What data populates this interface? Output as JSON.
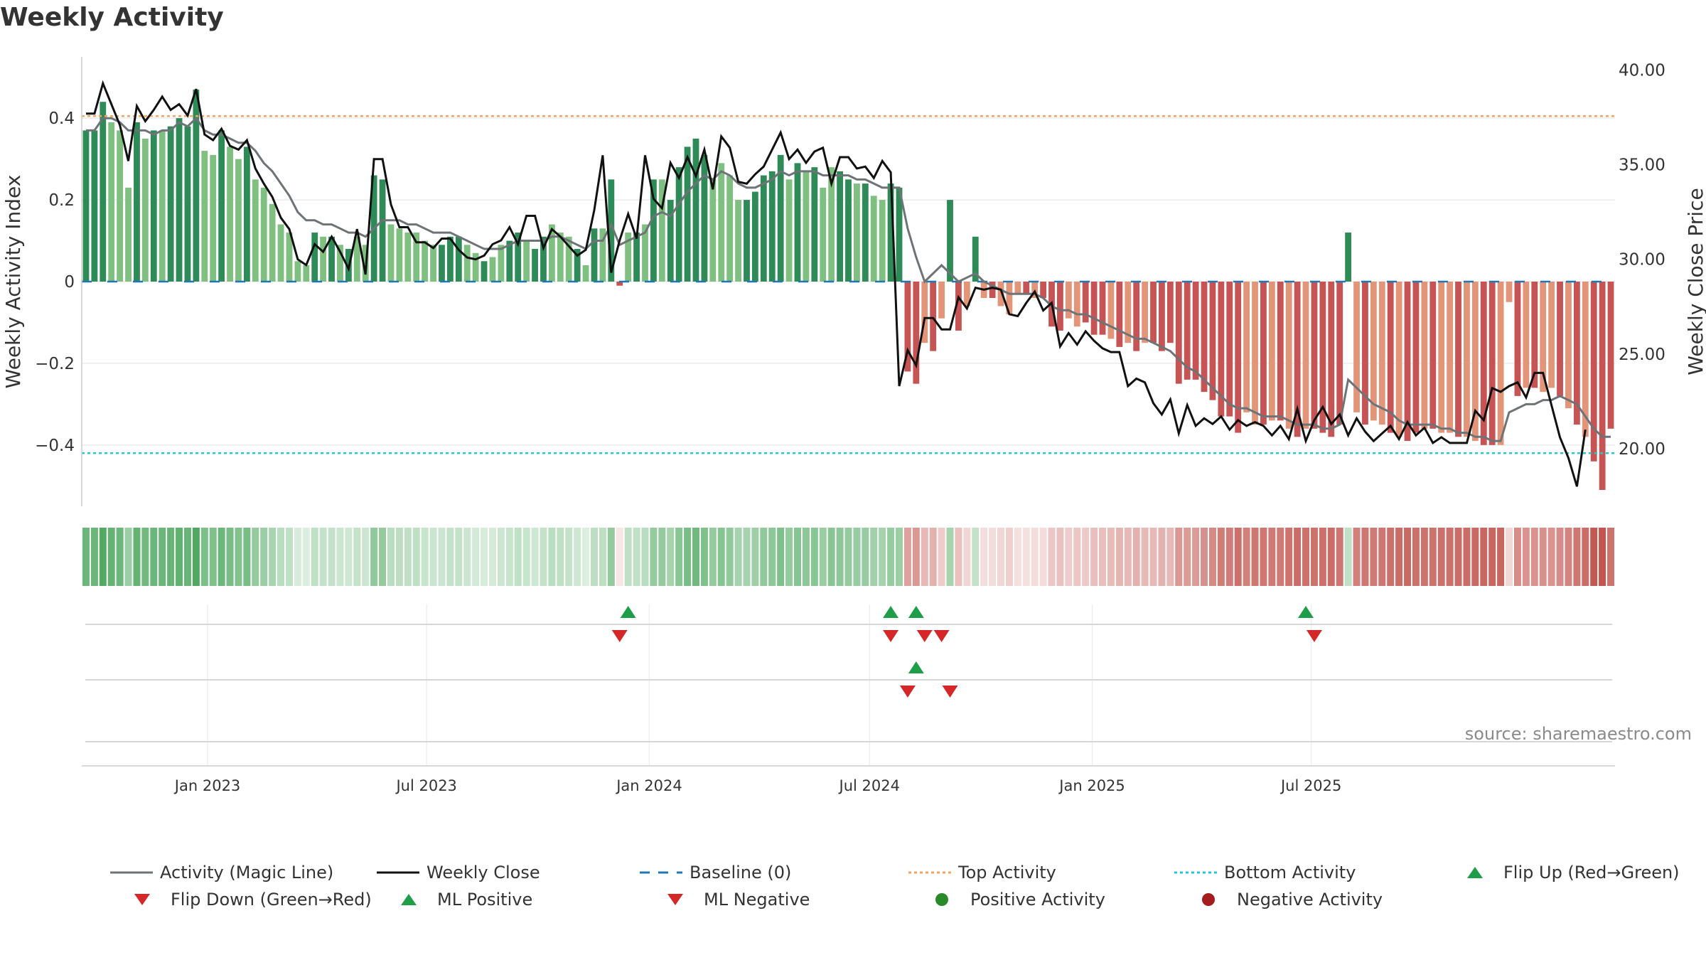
{
  "title": "Weekly Activity",
  "source": "source: sharemaestro.com",
  "colors": {
    "pos_dark": "#2e8b57",
    "pos_light": "#7fbf7f",
    "neg_dark": "#c65454",
    "neg_light": "#e3957a",
    "top_line": "#f4a460",
    "bottom_line": "#22c7d6",
    "baseline": "#1f77b4",
    "magic": "#6e7378",
    "close": "#111111",
    "up": "#1f9e49",
    "down": "#d62728"
  },
  "chart_data": {
    "type": "bar",
    "title": "Weekly Activity",
    "ylabel": "Weekly Activity Index",
    "y2label": "Weekly Close Price",
    "ylim": [
      -0.55,
      0.55
    ],
    "yticks": [
      -0.4,
      -0.2,
      0,
      0.2,
      0.4
    ],
    "ytick_labels": [
      "-0.4",
      "-0.2",
      "0",
      "0.2",
      "0.4"
    ],
    "y2lim": [
      16.95,
      40.7
    ],
    "y2ticks": [
      20,
      25,
      30,
      35,
      40
    ],
    "y2tick_labels": [
      "20.00",
      "25.00",
      "30.00",
      "35.00",
      "40.00"
    ],
    "start_date": "2022-09-19",
    "x_date_ticks": [
      "2023-01-01",
      "2023-07-01",
      "2024-01-01",
      "2024-07-01",
      "2025-01-01",
      "2025-07-01"
    ],
    "x_tick_labels": [
      "Jan 2023",
      "Jul 2023",
      "Jan 2024",
      "Jul 2024",
      "Jan 2025",
      "Jul 2025"
    ],
    "top_activity": 0.405,
    "bottom_activity": -0.42,
    "activity": [
      0.37,
      0.37,
      0.44,
      0.39,
      0.37,
      0.23,
      0.39,
      0.35,
      0.37,
      0.37,
      0.38,
      0.4,
      0.38,
      0.47,
      0.32,
      0.31,
      0.37,
      0.33,
      0.3,
      0.33,
      0.25,
      0.23,
      0.19,
      0.14,
      0.12,
      0.05,
      0.04,
      0.12,
      0.11,
      0.11,
      0.09,
      0.08,
      0.11,
      0.09,
      0.26,
      0.25,
      0.14,
      0.13,
      0.12,
      0.12,
      0.1,
      0.09,
      0.09,
      0.11,
      0.11,
      0.09,
      0.07,
      0.05,
      0.06,
      0.09,
      0.1,
      0.12,
      0.1,
      0.08,
      0.11,
      0.14,
      0.12,
      0.11,
      0.08,
      0.04,
      0.13,
      0.13,
      0.25,
      -0.01,
      0.12,
      0.12,
      0.14,
      0.25,
      0.25,
      0.2,
      0.28,
      0.33,
      0.35,
      0.31,
      0.25,
      0.29,
      0.26,
      0.2,
      0.2,
      0.22,
      0.26,
      0.27,
      0.31,
      0.25,
      0.29,
      0.27,
      0.28,
      0.23,
      0.28,
      0.27,
      0.25,
      0.24,
      0.24,
      0.21,
      0.2,
      0.24,
      0.23,
      -0.22,
      -0.25,
      -0.15,
      -0.17,
      -0.09,
      0.2,
      -0.12,
      -0.06,
      0.11,
      -0.04,
      -0.04,
      -0.06,
      -0.08,
      -0.03,
      -0.03,
      -0.04,
      -0.04,
      -0.11,
      -0.12,
      -0.09,
      -0.11,
      -0.1,
      -0.13,
      -0.13,
      -0.14,
      -0.16,
      -0.15,
      -0.17,
      -0.15,
      -0.15,
      -0.17,
      -0.15,
      -0.25,
      -0.24,
      -0.24,
      -0.27,
      -0.29,
      -0.33,
      -0.33,
      -0.37,
      -0.32,
      -0.35,
      -0.35,
      -0.34,
      -0.34,
      -0.36,
      -0.38,
      -0.36,
      -0.36,
      -0.37,
      -0.38,
      -0.35,
      0.12,
      -0.32,
      -0.35,
      -0.34,
      -0.35,
      -0.37,
      -0.38,
      -0.39,
      -0.37,
      -0.36,
      -0.36,
      -0.37,
      -0.37,
      -0.38,
      -0.38,
      -0.39,
      -0.4,
      -0.4,
      -0.4,
      -0.05,
      -0.28,
      -0.26,
      -0.26,
      -0.27,
      -0.26,
      -0.28,
      -0.31,
      -0.35,
      -0.38,
      -0.44,
      -0.51,
      -0.36
    ],
    "activity_shade": [
      1,
      1,
      1,
      0,
      0,
      0,
      1,
      0,
      1,
      0,
      1,
      1,
      1,
      1,
      0,
      0,
      1,
      0,
      0,
      1,
      0,
      0,
      0,
      0,
      0,
      0,
      0,
      1,
      0,
      1,
      0,
      1,
      0,
      0,
      1,
      1,
      0,
      0,
      0,
      0,
      0,
      0,
      1,
      1,
      1,
      0,
      0,
      1,
      0,
      0,
      1,
      1,
      0,
      1,
      1,
      0,
      0,
      0,
      1,
      0,
      1,
      0,
      1,
      1,
      0,
      1,
      0,
      1,
      0,
      1,
      1,
      1,
      1,
      1,
      0,
      0,
      0,
      0,
      1,
      1,
      1,
      1,
      1,
      0,
      1,
      0,
      1,
      0,
      0,
      1,
      1,
      0,
      1,
      0,
      0,
      1,
      1,
      1,
      1,
      0,
      1,
      0,
      1,
      1,
      0,
      1,
      0,
      1,
      0,
      0,
      0,
      1,
      0,
      1,
      1,
      1,
      0,
      0,
      1,
      1,
      1,
      0,
      1,
      0,
      1,
      0,
      1,
      1,
      1,
      1,
      1,
      1,
      1,
      1,
      1,
      1,
      1,
      0,
      0,
      1,
      0,
      1,
      0,
      1,
      0,
      1,
      1,
      1,
      1,
      1,
      0,
      1,
      0,
      0,
      1,
      0,
      1,
      1,
      0,
      1,
      0,
      0,
      1,
      0,
      0,
      1,
      1,
      0,
      0,
      1,
      0,
      1,
      0,
      0,
      1,
      0,
      1,
      0,
      1,
      1,
      1,
      0,
      1,
      1,
      1
    ],
    "magic_line": [
      0.37,
      0.37,
      0.4,
      0.4,
      0.39,
      0.37,
      0.37,
      0.37,
      0.36,
      0.37,
      0.37,
      0.39,
      0.38,
      0.4,
      0.37,
      0.36,
      0.36,
      0.35,
      0.34,
      0.34,
      0.32,
      0.29,
      0.27,
      0.24,
      0.21,
      0.17,
      0.15,
      0.15,
      0.14,
      0.14,
      0.13,
      0.12,
      0.12,
      0.11,
      0.13,
      0.15,
      0.15,
      0.15,
      0.14,
      0.14,
      0.13,
      0.12,
      0.12,
      0.12,
      0.11,
      0.1,
      0.09,
      0.08,
      0.08,
      0.08,
      0.09,
      0.1,
      0.1,
      0.1,
      0.1,
      0.11,
      0.11,
      0.1,
      0.09,
      0.08,
      0.1,
      0.1,
      0.14,
      0.09,
      0.1,
      0.11,
      0.12,
      0.16,
      0.17,
      0.16,
      0.19,
      0.22,
      0.24,
      0.26,
      0.25,
      0.27,
      0.26,
      0.24,
      0.23,
      0.23,
      0.24,
      0.25,
      0.27,
      0.26,
      0.27,
      0.27,
      0.27,
      0.26,
      0.26,
      0.26,
      0.26,
      0.25,
      0.25,
      0.24,
      0.23,
      0.23,
      0.23,
      0.13,
      0.06,
      0.0,
      0.02,
      0.04,
      0.02,
      0.0,
      0.01,
      0.02,
      0.0,
      -0.01,
      -0.02,
      -0.03,
      -0.03,
      -0.03,
      -0.03,
      -0.04,
      -0.06,
      -0.07,
      -0.07,
      -0.08,
      -0.08,
      -0.09,
      -0.1,
      -0.11,
      -0.12,
      -0.13,
      -0.14,
      -0.14,
      -0.15,
      -0.16,
      -0.17,
      -0.19,
      -0.21,
      -0.22,
      -0.24,
      -0.26,
      -0.28,
      -0.3,
      -0.31,
      -0.31,
      -0.32,
      -0.33,
      -0.33,
      -0.33,
      -0.34,
      -0.35,
      -0.35,
      -0.35,
      -0.36,
      -0.36,
      -0.35,
      -0.24,
      -0.26,
      -0.28,
      -0.3,
      -0.31,
      -0.32,
      -0.34,
      -0.35,
      -0.35,
      -0.35,
      -0.35,
      -0.36,
      -0.36,
      -0.37,
      -0.37,
      -0.38,
      -0.38,
      -0.39,
      -0.39,
      -0.32,
      -0.31,
      -0.3,
      -0.3,
      -0.29,
      -0.29,
      -0.28,
      -0.29,
      -0.3,
      -0.33,
      -0.36,
      -0.38,
      -0.38
    ],
    "weekly_close": [
      37.7,
      37.7,
      39.3,
      38.2,
      37.1,
      35.2,
      38.1,
      37.3,
      37.9,
      38.6,
      37.9,
      38.2,
      37.6,
      39.0,
      36.6,
      36.3,
      36.9,
      36.0,
      35.8,
      36.3,
      34.8,
      34.0,
      33.3,
      32.2,
      31.6,
      30.0,
      29.7,
      30.8,
      30.4,
      31.2,
      30.4,
      29.5,
      31.6,
      29.2,
      35.3,
      35.3,
      32.9,
      31.7,
      31.7,
      30.9,
      30.9,
      30.6,
      31.1,
      31.1,
      30.5,
      30.1,
      30.0,
      30.2,
      30.8,
      31.0,
      31.7,
      30.8,
      32.3,
      32.3,
      30.6,
      31.6,
      31.2,
      30.7,
      30.2,
      30.5,
      32.6,
      35.5,
      29.3,
      31.0,
      32.4,
      31.1,
      35.5,
      33.2,
      32.7,
      35.1,
      34.3,
      35.4,
      34.4,
      35.8,
      33.7,
      36.5,
      35.9,
      34.1,
      34.0,
      34.5,
      34.9,
      35.8,
      36.7,
      35.3,
      35.8,
      35.1,
      35.7,
      35.9,
      34.0,
      35.4,
      35.4,
      34.8,
      34.9,
      34.3,
      35.2,
      34.6,
      23.3,
      25.2,
      24.4,
      26.9,
      26.9,
      26.3,
      26.3,
      28.0,
      27.4,
      28.5,
      28.4,
      28.5,
      28.4,
      27.1,
      27.0,
      27.7,
      28.3,
      27.3,
      27.7,
      25.4,
      26.1,
      25.5,
      26.2,
      25.7,
      25.3,
      25.1,
      25.1,
      23.3,
      23.7,
      23.5,
      22.4,
      21.8,
      22.6,
      20.8,
      22.3,
      21.2,
      21.6,
      21.3,
      21.7,
      21.0,
      21.5,
      21.2,
      21.4,
      21.2,
      20.7,
      21.2,
      20.5,
      22.1,
      20.4,
      21.5,
      22.2,
      21.3,
      21.8,
      20.7,
      21.6,
      20.9,
      20.4,
      20.8,
      21.2,
      20.5,
      21.4,
      20.7,
      21.1,
      20.3,
      20.6,
      20.3,
      20.3,
      20.3,
      22.0,
      21.5,
      23.2,
      23.0,
      23.3,
      23.5,
      22.7,
      24.0,
      24.0,
      22.3,
      20.6,
      19.5,
      18.0,
      21.0
    ],
    "flip_up_weeks": [
      64,
      95,
      98,
      144
    ],
    "flip_down_weeks": [
      63,
      95,
      99,
      101,
      145
    ],
    "ml_positive_weeks": [
      98
    ],
    "ml_negative_weeks": [
      97,
      102
    ]
  },
  "legend": [
    {
      "label": "Activity (Magic Line)",
      "icon": "line-gray"
    },
    {
      "label": "Weekly Close",
      "icon": "line-black"
    },
    {
      "label": "Baseline (0)",
      "icon": "dashed-blue"
    },
    {
      "label": "Top Activity",
      "icon": "dotted-orange"
    },
    {
      "label": "Bottom Activity",
      "icon": "dotted-cyan"
    },
    {
      "label": "Flip Up (Red→Green)",
      "icon": "triangle-up-green"
    },
    {
      "label": "Flip Down (Green→Red)",
      "icon": "triangle-down-red"
    },
    {
      "label": "ML Positive",
      "icon": "triangle-up-green"
    },
    {
      "label": "ML Negative",
      "icon": "triangle-down-red"
    },
    {
      "label": "Positive Activity",
      "icon": "circle-green"
    },
    {
      "label": "Negative Activity",
      "icon": "circle-darkred"
    }
  ]
}
